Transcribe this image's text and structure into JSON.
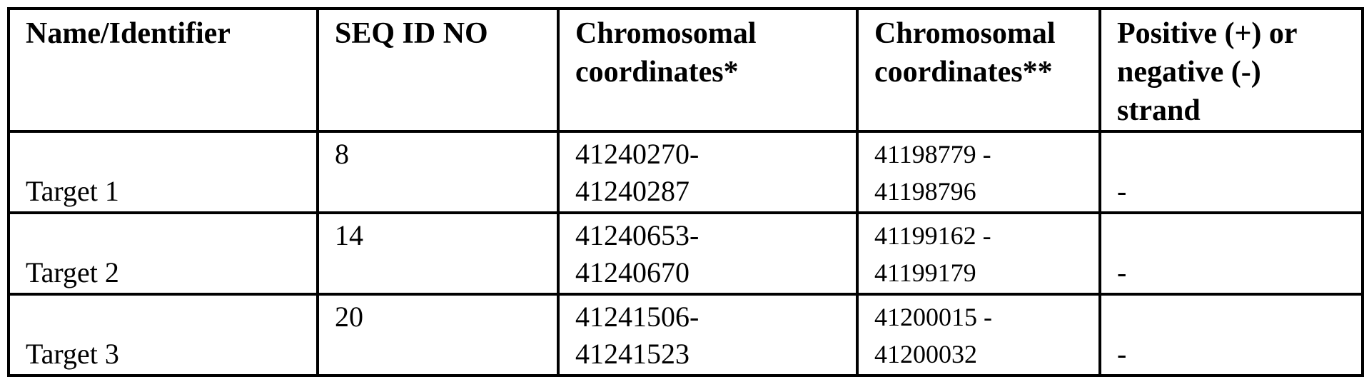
{
  "table": {
    "headers": [
      [
        "Name/Identifier"
      ],
      [
        "SEQ ID NO"
      ],
      [
        "Chromosomal",
        "coordinates*"
      ],
      [
        "Chromosomal",
        "coordinates**"
      ],
      [
        "Positive (+) or",
        "negative (-)",
        "strand"
      ]
    ],
    "rows": [
      {
        "name": "Target 1",
        "seq_id": "8",
        "coords1": [
          "41240270-",
          "41240287"
        ],
        "coords2": [
          "41198779 -",
          "41198796"
        ],
        "strand": "-"
      },
      {
        "name": "Target 2",
        "seq_id": "14",
        "coords1": [
          "41240653-",
          "41240670"
        ],
        "coords2": [
          "41199162 -",
          "41199179"
        ],
        "strand": "-"
      },
      {
        "name": "Target 3",
        "seq_id": "20",
        "coords1": [
          "41241506-",
          "41241523"
        ],
        "coords2": [
          "41200015 -",
          "41200032"
        ],
        "strand": "-"
      }
    ]
  }
}
